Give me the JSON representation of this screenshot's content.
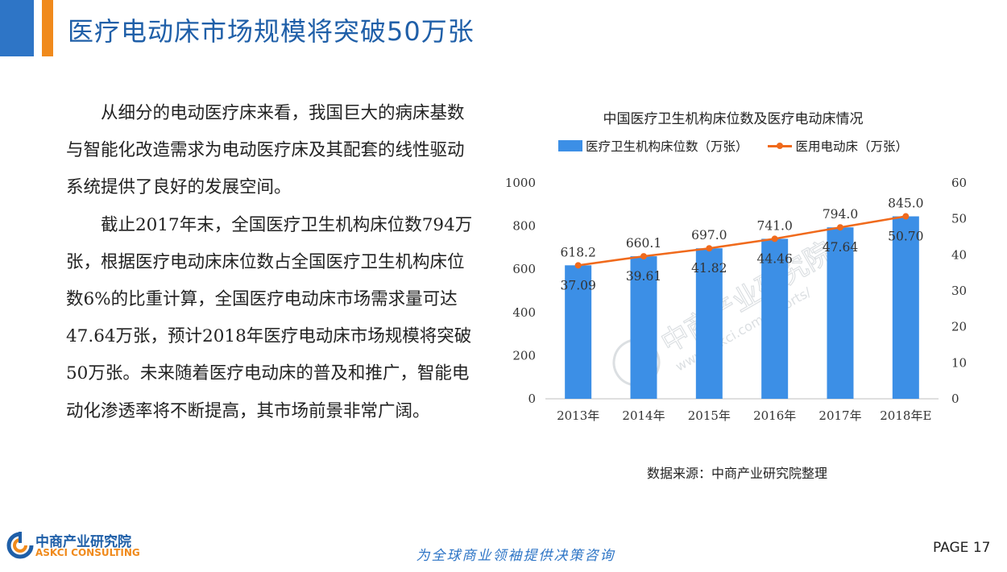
{
  "header": {
    "title": "医疗电动床市场规模将突破50万张"
  },
  "body": {
    "paragraph1": "从细分的电动医疗床来看，我国巨大的病床基数与智能化改造需求为电动医疗床及其配套的线性驱动系统提供了良好的发展空间。",
    "paragraph2": "截止2017年末，全国医疗卫生机构床位数794万张，根据医疗电动床床位数占全国医疗卫生机构床位数6%的比重计算，全国医疗电动床市场需求量可达47.64万张，预计2018年医疗电动床市场规模将突破50万张。未来随着医疗电动床的普及和推广，智能电动化渗透率将不断提高，其市场前景非常广阔。"
  },
  "chart_data": {
    "type": "bar",
    "title": "中国医疗卫生机构床位数及医疗电动床情况",
    "categories": [
      "2013年",
      "2014年",
      "2015年",
      "2016年",
      "2017年",
      "2018年E"
    ],
    "series": [
      {
        "name": "医疗卫生机构床位数（万张）",
        "type": "bar",
        "axis": "left",
        "color": "#3c8fe6",
        "values": [
          618.2,
          660.1,
          697.0,
          741.0,
          794.0,
          845.0
        ],
        "labels": [
          "618.2",
          "660.1",
          "697.0",
          "741.0",
          "794.0",
          "845.0"
        ]
      },
      {
        "name": "医用电动床（万张）",
        "type": "line",
        "axis": "right",
        "color": "#f06a1c",
        "values": [
          37.09,
          39.61,
          41.82,
          44.46,
          47.64,
          50.7
        ],
        "labels": [
          "37.09",
          "39.61",
          "41.82",
          "44.46",
          "47.64",
          "50.70"
        ]
      }
    ],
    "y_left": {
      "min": 0,
      "max": 1000,
      "ticks": [
        0,
        200,
        400,
        600,
        800,
        1000
      ]
    },
    "y_right": {
      "min": 0,
      "max": 60,
      "ticks": [
        0,
        10,
        20,
        30,
        40,
        50,
        60
      ]
    },
    "legend_position": "top",
    "grid": false
  },
  "watermark": {
    "cn": "中商产业研究院",
    "url": "www.askci.com/reports/"
  },
  "source": "数据来源：中商产业研究院整理",
  "footer": {
    "logo_cn": "中商产业研究院",
    "logo_en": "ASKCI CONSULTING",
    "slogan": "为全球商业领袖提供决策咨询",
    "page": "PAGE  17"
  }
}
